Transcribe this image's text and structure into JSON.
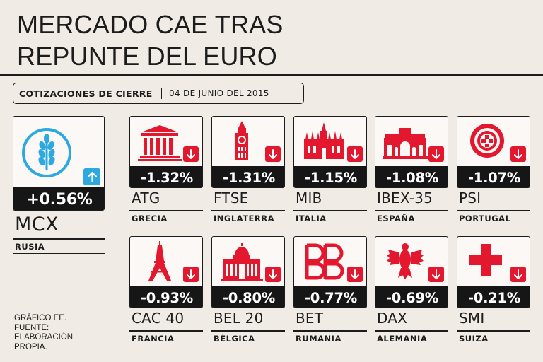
{
  "title": {
    "line1": "MERCADO CAE TRAS",
    "line2": "REPUNTE DEL EURO"
  },
  "subtitle_bar": {
    "label": "COTIZACIONES DE CIERRE",
    "date": "04 DE JUNIO DEL 2015"
  },
  "featured": {
    "change": "+0.56%",
    "code": "MCX",
    "country": "RUSIA",
    "icon": "wheat-icon",
    "direction": "up"
  },
  "markets": [
    {
      "change": "-1.32%",
      "code": "ATG",
      "country": "GRECIA",
      "icon": "parthenon-icon",
      "direction": "down"
    },
    {
      "change": "-1.31%",
      "code": "FTSE",
      "country": "INGLATERRA",
      "icon": "big-ben-icon",
      "direction": "down"
    },
    {
      "change": "-1.15%",
      "code": "MIB",
      "country": "ITALIA",
      "icon": "milan-cathedral-icon",
      "direction": "down"
    },
    {
      "change": "-1.08%",
      "code": "IBEX-35",
      "country": "ESPAÑA",
      "icon": "puerta-de-alcala-icon",
      "direction": "down"
    },
    {
      "change": "-1.07%",
      "code": "PSI",
      "country": "PORTUGAL",
      "icon": "portugal-shield-icon",
      "direction": "down"
    },
    {
      "change": "-0.93%",
      "code": "CAC 40",
      "country": "FRANCIA",
      "icon": "eiffel-tower-icon",
      "direction": "down"
    },
    {
      "change": "-0.80%",
      "code": "BEL 20",
      "country": "BÉLGICA",
      "icon": "palace-of-justice-icon",
      "direction": "down"
    },
    {
      "change": "-0.77%",
      "code": "BET",
      "country": "RUMANIA",
      "icon": "bvb-logo-icon",
      "direction": "down"
    },
    {
      "change": "-0.69%",
      "code": "DAX",
      "country": "ALEMANIA",
      "icon": "german-eagle-icon",
      "direction": "down"
    },
    {
      "change": "-0.21%",
      "code": "SMI",
      "country": "SUIZA",
      "icon": "swiss-cross-icon",
      "direction": "down"
    }
  ],
  "source": {
    "line1": "GRÁFICO EE.",
    "line2": "FUENTE:",
    "line3": "ELABORACIÓN",
    "line4": "PROPIA."
  },
  "colors": {
    "background": "#f1ebe5",
    "down": "#e3172e",
    "up": "#2ba9e0",
    "value_bg": "#161616"
  }
}
